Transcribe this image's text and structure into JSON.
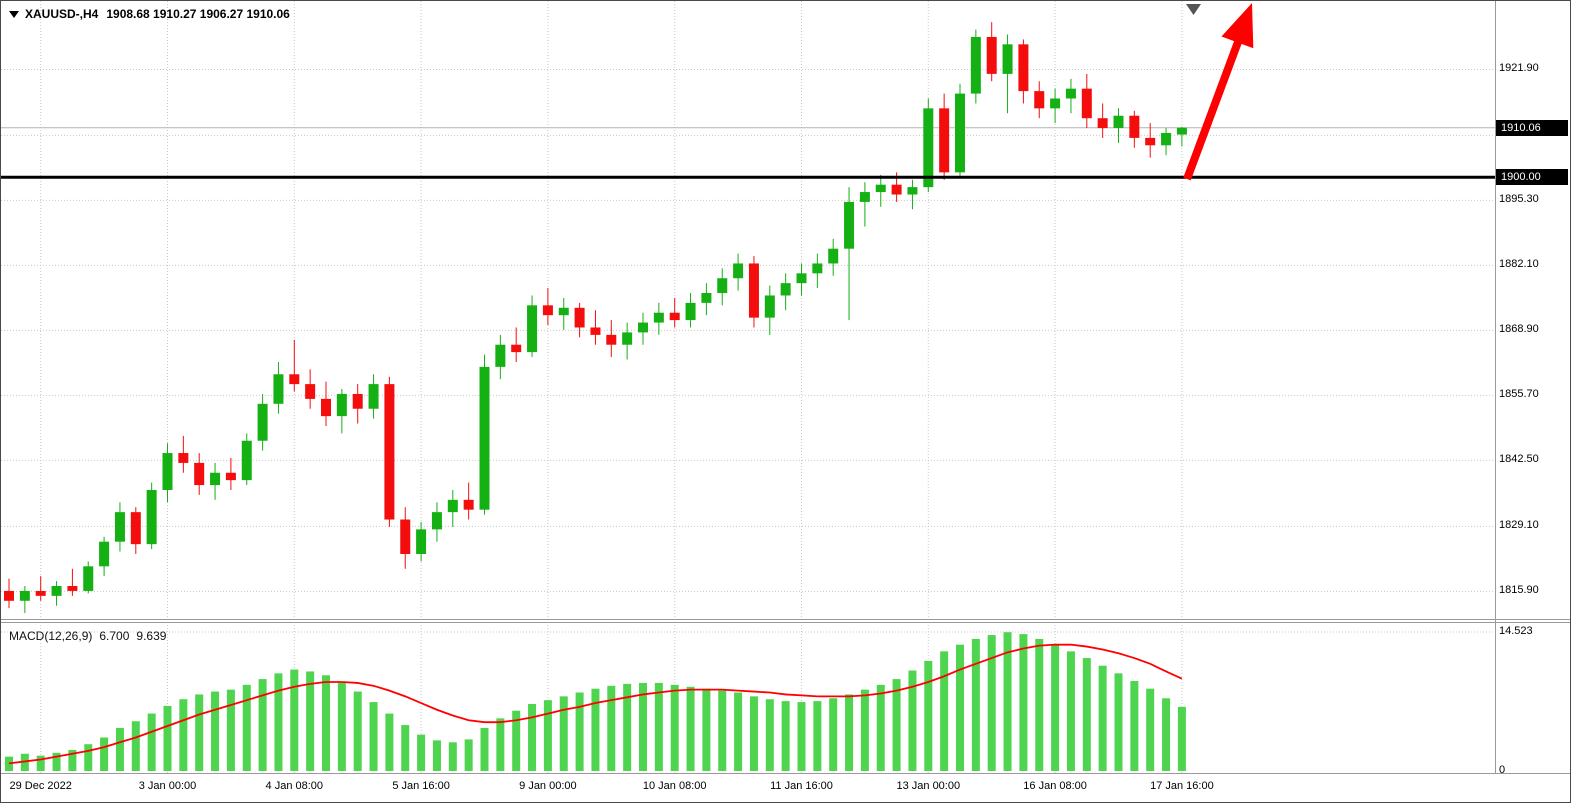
{
  "header": {
    "symbol_period": "XAUUSD-,H4",
    "ohlc": "1908.68 1910.27 1906.27 1910.06"
  },
  "indicator": {
    "name": "MACD(12,26,9)",
    "value_main": "6.700",
    "value_signal": "9.639",
    "scale_max": "14.523",
    "scale_min": "0"
  },
  "price_axis": {
    "labels": [
      "1921.90",
      "1895.30",
      "1882.10",
      "1868.90",
      "1855.70",
      "1842.50",
      "1829.10",
      "1815.90"
    ],
    "current_price_badge": "1910.06",
    "level_badge": "1900.00"
  },
  "time_axis": {
    "labels": [
      {
        "label": "29 Dec 2022",
        "bar": 2
      },
      {
        "label": "3 Jan 00:00",
        "bar": 10
      },
      {
        "label": "4 Jan 08:00",
        "bar": 18
      },
      {
        "label": "5 Jan 16:00",
        "bar": 26
      },
      {
        "label": "9 Jan 00:00",
        "bar": 34
      },
      {
        "label": "10 Jan 08:00",
        "bar": 42
      },
      {
        "label": "11 Jan 16:00",
        "bar": 50
      },
      {
        "label": "13 Jan 00:00",
        "bar": 58
      },
      {
        "label": "16 Jan 08:00",
        "bar": 66
      },
      {
        "label": "17 Jan 16:00",
        "bar": 74
      }
    ]
  },
  "chart_data": {
    "type": "candlestick",
    "title": "XAUUSD- H4 chart with MACD(12,26,9)",
    "symbol": "XAUUSD-",
    "timeframe": "H4",
    "ylim": [
      1810.3,
      1935.8
    ],
    "grid_prices": [
      1921.9,
      1908.5,
      1895.3,
      1882.1,
      1868.9,
      1855.7,
      1842.5,
      1829.1,
      1815.9
    ],
    "horizontal_level": 1900.0,
    "current_price": 1910.06,
    "current_price_label": "1910.06",
    "level_label": "1900.00",
    "x_tick_labels": [
      "29 Dec 2022",
      "3 Jan 00:00",
      "4 Jan 08:00",
      "5 Jan 16:00",
      "9 Jan 00:00",
      "10 Jan 08:00",
      "11 Jan 16:00",
      "13 Jan 00:00",
      "16 Jan 08:00",
      "17 Jan 16:00"
    ],
    "candles_ohlc": [
      [
        1816.0,
        1818.5,
        1812.5,
        1814.0
      ],
      [
        1814.0,
        1817.0,
        1811.5,
        1816.0
      ],
      [
        1816.0,
        1819.0,
        1814.0,
        1815.0
      ],
      [
        1815.0,
        1818.0,
        1813.0,
        1817.0
      ],
      [
        1817.0,
        1820.5,
        1815.0,
        1816.0
      ],
      [
        1816.0,
        1822.0,
        1815.5,
        1821.0
      ],
      [
        1821.0,
        1827.0,
        1819.0,
        1826.0
      ],
      [
        1826.0,
        1834.0,
        1824.0,
        1832.0
      ],
      [
        1832.0,
        1833.0,
        1823.5,
        1825.5
      ],
      [
        1825.5,
        1838.0,
        1824.5,
        1836.5
      ],
      [
        1836.5,
        1846.0,
        1834.0,
        1844.0
      ],
      [
        1844.0,
        1847.5,
        1840.0,
        1842.0
      ],
      [
        1842.0,
        1844.0,
        1835.5,
        1837.5
      ],
      [
        1837.5,
        1842.0,
        1834.5,
        1840.0
      ],
      [
        1840.0,
        1843.0,
        1836.5,
        1838.5
      ],
      [
        1838.5,
        1848.0,
        1837.5,
        1846.5
      ],
      [
        1846.5,
        1856.0,
        1844.5,
        1854.0
      ],
      [
        1854.0,
        1862.5,
        1852.0,
        1860.0
      ],
      [
        1860.0,
        1867.0,
        1856.5,
        1858.0
      ],
      [
        1858.0,
        1861.0,
        1853.0,
        1855.0
      ],
      [
        1855.0,
        1858.5,
        1849.5,
        1851.5
      ],
      [
        1851.5,
        1857.0,
        1848.0,
        1856.0
      ],
      [
        1856.0,
        1858.0,
        1850.0,
        1853.0
      ],
      [
        1853.0,
        1860.0,
        1851.0,
        1858.0
      ],
      [
        1858.0,
        1859.5,
        1829.0,
        1830.5
      ],
      [
        1830.5,
        1833.0,
        1820.5,
        1823.5
      ],
      [
        1823.5,
        1830.0,
        1822.0,
        1828.5
      ],
      [
        1828.5,
        1834.0,
        1826.0,
        1832.0
      ],
      [
        1832.0,
        1836.5,
        1829.0,
        1834.5
      ],
      [
        1834.5,
        1838.0,
        1830.5,
        1832.5
      ],
      [
        1832.5,
        1864.0,
        1831.5,
        1861.5
      ],
      [
        1861.5,
        1868.0,
        1859.0,
        1866.0
      ],
      [
        1866.0,
        1869.5,
        1862.5,
        1864.5
      ],
      [
        1864.5,
        1876.0,
        1863.5,
        1874.0
      ],
      [
        1874.0,
        1877.5,
        1870.0,
        1872.0
      ],
      [
        1872.0,
        1875.5,
        1869.0,
        1873.5
      ],
      [
        1873.5,
        1874.5,
        1867.5,
        1869.5
      ],
      [
        1869.5,
        1873.0,
        1866.0,
        1868.0
      ],
      [
        1868.0,
        1871.0,
        1863.5,
        1866.0
      ],
      [
        1866.0,
        1870.5,
        1863.0,
        1868.5
      ],
      [
        1868.5,
        1872.5,
        1866.0,
        1870.5
      ],
      [
        1870.5,
        1874.5,
        1868.0,
        1872.5
      ],
      [
        1872.5,
        1875.5,
        1869.5,
        1871.0
      ],
      [
        1871.0,
        1876.5,
        1869.5,
        1874.5
      ],
      [
        1874.5,
        1878.5,
        1872.0,
        1876.5
      ],
      [
        1876.5,
        1881.5,
        1874.0,
        1879.5
      ],
      [
        1879.5,
        1884.5,
        1877.0,
        1882.5
      ],
      [
        1882.5,
        1884.0,
        1869.5,
        1871.5
      ],
      [
        1871.5,
        1878.0,
        1868.0,
        1876.0
      ],
      [
        1876.0,
        1880.5,
        1873.0,
        1878.5
      ],
      [
        1878.5,
        1882.5,
        1876.0,
        1880.5
      ],
      [
        1880.5,
        1884.5,
        1877.5,
        1882.5
      ],
      [
        1882.5,
        1887.5,
        1880.0,
        1885.5
      ],
      [
        1885.5,
        1898.0,
        1871.0,
        1895.0
      ],
      [
        1895.0,
        1899.0,
        1890.0,
        1897.0
      ],
      [
        1897.0,
        1900.5,
        1894.0,
        1898.5
      ],
      [
        1898.5,
        1901.0,
        1895.0,
        1896.5
      ],
      [
        1896.5,
        1899.5,
        1893.5,
        1898.0
      ],
      [
        1898.0,
        1916.0,
        1897.0,
        1914.0
      ],
      [
        1914.0,
        1917.0,
        1899.5,
        1901.0
      ],
      [
        1901.0,
        1919.0,
        1900.0,
        1917.0
      ],
      [
        1917.0,
        1930.0,
        1915.0,
        1928.5
      ],
      [
        1928.5,
        1931.5,
        1919.5,
        1921.0
      ],
      [
        1921.0,
        1929.0,
        1913.0,
        1927.0
      ],
      [
        1927.0,
        1928.0,
        1915.0,
        1917.5
      ],
      [
        1917.5,
        1919.5,
        1912.0,
        1914.0
      ],
      [
        1914.0,
        1918.0,
        1911.0,
        1916.0
      ],
      [
        1916.0,
        1920.0,
        1913.0,
        1918.0
      ],
      [
        1918.0,
        1921.0,
        1910.0,
        1912.0
      ],
      [
        1912.0,
        1915.0,
        1908.0,
        1910.0
      ],
      [
        1910.0,
        1914.0,
        1907.0,
        1912.5
      ],
      [
        1912.5,
        1913.5,
        1906.0,
        1908.0
      ],
      [
        1908.0,
        1911.0,
        1904.0,
        1906.5
      ],
      [
        1906.5,
        1910.0,
        1904.5,
        1909.0
      ],
      [
        1908.68,
        1910.27,
        1906.27,
        1910.06
      ]
    ],
    "macd": {
      "ylim": [
        0,
        14.523
      ],
      "histogram": [
        1.5,
        1.8,
        1.6,
        1.9,
        2.2,
        2.8,
        3.5,
        4.5,
        5.2,
        6.0,
        6.8,
        7.5,
        8.0,
        8.3,
        8.5,
        9.0,
        9.6,
        10.2,
        10.6,
        10.4,
        10.0,
        9.2,
        8.3,
        7.2,
        6.0,
        4.8,
        3.8,
        3.2,
        3.0,
        3.3,
        4.5,
        5.5,
        6.3,
        7.0,
        7.4,
        7.8,
        8.2,
        8.6,
        8.9,
        9.1,
        9.2,
        9.2,
        9.0,
        8.8,
        8.6,
        8.4,
        8.2,
        7.8,
        7.5,
        7.3,
        7.2,
        7.3,
        7.6,
        8.0,
        8.5,
        9.0,
        9.6,
        10.5,
        11.5,
        12.5,
        13.2,
        13.8,
        14.2,
        14.5,
        14.3,
        13.8,
        13.2,
        12.5,
        11.8,
        11.0,
        10.2,
        9.4,
        8.6,
        7.6,
        6.7
      ],
      "signal": [
        0.8,
        1.0,
        1.2,
        1.5,
        1.8,
        2.1,
        2.5,
        3.0,
        3.5,
        4.1,
        4.7,
        5.3,
        5.9,
        6.4,
        6.9,
        7.4,
        7.9,
        8.4,
        8.8,
        9.1,
        9.3,
        9.3,
        9.2,
        8.9,
        8.4,
        7.8,
        7.1,
        6.4,
        5.8,
        5.3,
        5.1,
        5.1,
        5.3,
        5.6,
        6.0,
        6.4,
        6.7,
        7.1,
        7.4,
        7.7,
        8.0,
        8.2,
        8.4,
        8.5,
        8.5,
        8.5,
        8.4,
        8.3,
        8.2,
        8.0,
        7.9,
        7.8,
        7.8,
        7.8,
        7.9,
        8.1,
        8.4,
        8.8,
        9.3,
        9.9,
        10.6,
        11.2,
        11.8,
        12.4,
        12.8,
        13.1,
        13.2,
        13.2,
        13.0,
        12.7,
        12.3,
        11.8,
        11.2,
        10.4,
        9.64
      ]
    },
    "annotations": [
      {
        "type": "arrow-up",
        "color": "#ff0000",
        "note": "thick red up-trend arrow near latest bars"
      }
    ]
  },
  "colors": {
    "bull": "#14b014",
    "bear": "#f40d0d",
    "macd_bar": "#4ed44e",
    "macd_signal": "#ff0000",
    "grid": "#c9c9c9",
    "level_line": "#000000",
    "current_price_line": "#b4b4b4",
    "badge_bg": "#000000",
    "badge_text": "#ffffff",
    "arrow": "#ff0000",
    "frame": "#9a9a9a"
  }
}
